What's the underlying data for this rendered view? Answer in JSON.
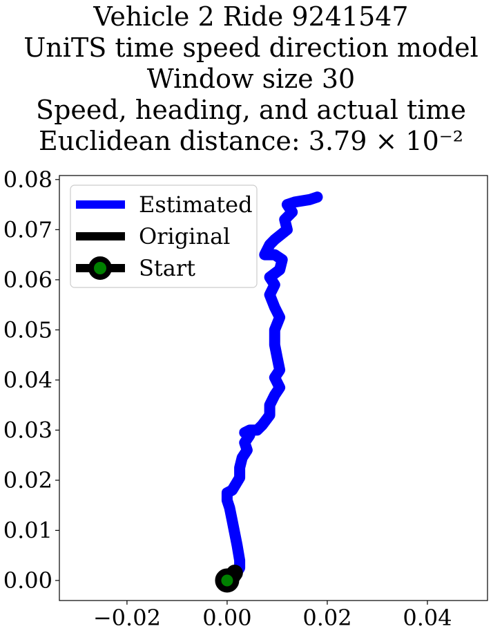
{
  "title_lines": [
    "Vehicle 2 Ride 9241547",
    "UniTS time speed direction model",
    "Window size 30",
    "Speed, heading, and actual time",
    "Euclidean distance: 3.79 × 10⁻²"
  ],
  "chart_data": {
    "type": "line",
    "title": "Vehicle 2 Ride 9241547 / UniTS time speed direction model / Window size 30 / Speed, heading, and actual time / Euclidean distance: 3.79 × 10⁻²",
    "xlim": [
      -0.0335,
      0.052
    ],
    "ylim": [
      -0.004,
      0.0808
    ],
    "grid": false,
    "legend_position": "top-left",
    "x_ticks": [
      -0.02,
      0.0,
      0.02,
      0.04
    ],
    "x_tick_labels": [
      "−0.02",
      "0.00",
      "0.02",
      "0.04"
    ],
    "y_ticks": [
      0.0,
      0.01,
      0.02,
      0.03,
      0.04,
      0.05,
      0.06,
      0.07,
      0.08
    ],
    "y_tick_labels": [
      "0.00",
      "0.01",
      "0.02",
      "0.03",
      "0.04",
      "0.05",
      "0.06",
      "0.07",
      "0.08"
    ],
    "colors": {
      "estimated": "#0000ff",
      "original": "#000000",
      "start_marker": "#000000",
      "start_fill": "#008000"
    },
    "legend": [
      "Estimated",
      "Original",
      "Start"
    ],
    "series": [
      {
        "name": "Estimated",
        "x": [
          0.0,
          0.0015,
          0.0025,
          0.0025,
          0.002,
          0.0015,
          0.001,
          0.0005,
          0.0,
          0.0,
          0.001,
          0.0025,
          0.0025,
          0.003,
          0.004,
          0.0035,
          0.0045,
          0.004,
          0.0035,
          0.0045,
          0.006,
          0.007,
          0.0085,
          0.0085,
          0.0095,
          0.0105,
          0.0095,
          0.0105,
          0.01,
          0.0095,
          0.0095,
          0.0105,
          0.0095,
          0.0085,
          0.0095,
          0.0085,
          0.0105,
          0.011,
          0.0095,
          0.0075,
          0.0085,
          0.0095,
          0.012,
          0.0115,
          0.013,
          0.012,
          0.0135,
          0.0165,
          0.018
        ],
        "y": [
          0.0,
          0.001,
          0.0025,
          0.004,
          0.007,
          0.0095,
          0.012,
          0.0145,
          0.016,
          0.0175,
          0.018,
          0.0205,
          0.0225,
          0.0245,
          0.026,
          0.0275,
          0.029,
          0.0295,
          0.0295,
          0.03,
          0.03,
          0.031,
          0.033,
          0.035,
          0.037,
          0.0385,
          0.0405,
          0.042,
          0.0445,
          0.047,
          0.05,
          0.0525,
          0.0545,
          0.057,
          0.059,
          0.0605,
          0.062,
          0.064,
          0.065,
          0.065,
          0.067,
          0.068,
          0.07,
          0.072,
          0.0735,
          0.075,
          0.0755,
          0.076,
          0.0765
        ]
      },
      {
        "name": "Original",
        "x": [
          0.0,
          0.001,
          0.0015
        ],
        "y": [
          0.0,
          0.0008,
          0.0015
        ]
      },
      {
        "name": "Start",
        "x": [
          0.0
        ],
        "y": [
          0.0
        ]
      }
    ]
  }
}
